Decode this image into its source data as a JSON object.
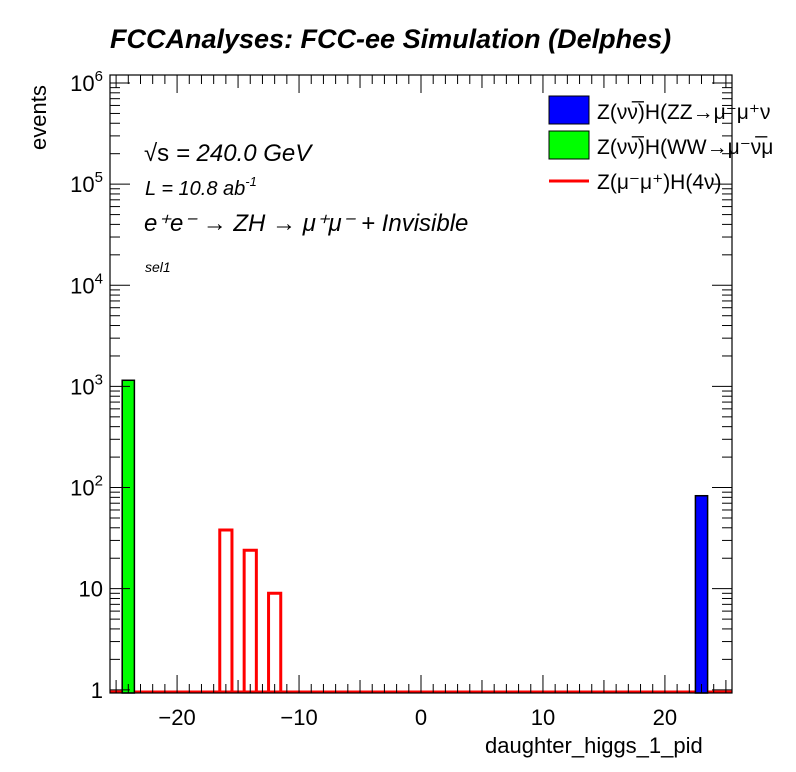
{
  "chart_data": {
    "type": "bar",
    "title": "FCCAnalyses: FCC-ee Simulation (Delphes)",
    "xlabel": "daughter_higgs_1_pid",
    "ylabel": "events",
    "xlim": [
      -25.5,
      25.5
    ],
    "ylim": [
      0.93,
      1200000
    ],
    "log_y": true,
    "x_ticks": [
      -20,
      -10,
      0,
      10,
      20
    ],
    "x_tick_labels": [
      "−20",
      "−10",
      "0",
      "10",
      "20"
    ],
    "y_ticks": [
      1,
      10,
      100,
      1000,
      10000,
      100000,
      1000000
    ],
    "y_tick_labels": [
      {
        "base": "1",
        "exp": ""
      },
      {
        "base": "10",
        "exp": ""
      },
      {
        "base": "10",
        "exp": "2"
      },
      {
        "base": "10",
        "exp": "3"
      },
      {
        "base": "10",
        "exp": "4"
      },
      {
        "base": "10",
        "exp": "5"
      },
      {
        "base": "10",
        "exp": "6"
      }
    ],
    "annotations": {
      "sqrt_s_sym": "√s",
      "sqrt_s_val": " = 240.0 GeV",
      "lumi_base": "L = 10.8 ab",
      "lumi_exp": "-1",
      "process": "e⁺e⁻ → ZH → μ⁺μ⁻ + Invisible",
      "selection": "sel1"
    },
    "legend_position": "top-right",
    "series": [
      {
        "name": "Z(νν̅)H(ZZ→μ⁻μ⁺ν",
        "style": "filled",
        "color": "#0000ff",
        "bins": [
          {
            "x0": 22.5,
            "x1": 23.5,
            "value": 83
          }
        ]
      },
      {
        "name": "Z(νν̅)H(WW→μ⁻ν̅μ",
        "style": "filled",
        "color": "#00ff00",
        "bins": [
          {
            "x0": -24.5,
            "x1": -23.5,
            "value": 1150
          }
        ]
      },
      {
        "name": "Z(μ⁻μ⁺)H(4ν)",
        "style": "step",
        "color": "#ff0000",
        "bins": [
          {
            "x0": -16.5,
            "x1": -15.5,
            "value": 38
          },
          {
            "x0": -14.5,
            "x1": -13.5,
            "value": 24
          },
          {
            "x0": -12.5,
            "x1": -11.5,
            "value": 9
          }
        ]
      }
    ]
  }
}
